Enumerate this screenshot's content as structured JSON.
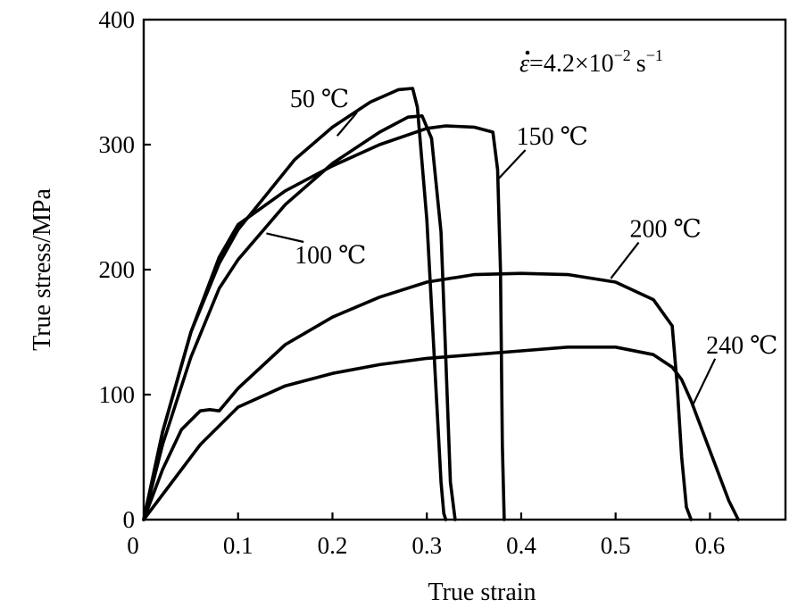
{
  "chart_data": {
    "type": "line",
    "title": "",
    "xlabel": "True strain",
    "ylabel": "True stress/MPa",
    "xlim": [
      0,
      0.68
    ],
    "ylim": [
      0,
      400
    ],
    "x_ticks": [
      0.1,
      0.2,
      0.3,
      0.4,
      0.5,
      0.6
    ],
    "x_tick_labels": [
      "0.1",
      "0.2",
      "0.3",
      "0.4",
      "0.5",
      "0.6"
    ],
    "y_ticks": [
      0,
      100,
      200,
      300,
      400
    ],
    "y_tick_labels": [
      "0",
      "100",
      "200",
      "300",
      "400"
    ],
    "grid": false,
    "legend": "none",
    "annotation": {
      "base": "ε",
      "text": "=4.2×10",
      "exponent": "−2",
      "unit": "s",
      "unit_exponent": "−1"
    },
    "series": [
      {
        "name": "50 ℃",
        "x": [
          0.0,
          0.02,
          0.05,
          0.08,
          0.1,
          0.13,
          0.16,
          0.2,
          0.24,
          0.27,
          0.285,
          0.29,
          0.3,
          0.31,
          0.315,
          0.318,
          0.32
        ],
        "y": [
          0,
          70,
          150,
          205,
          232,
          260,
          288,
          314,
          334,
          344,
          345,
          330,
          240,
          100,
          30,
          5,
          0
        ]
      },
      {
        "name": "100 ℃",
        "x": [
          0.0,
          0.02,
          0.05,
          0.08,
          0.1,
          0.15,
          0.2,
          0.25,
          0.28,
          0.295,
          0.305,
          0.315,
          0.32,
          0.325,
          0.33
        ],
        "y": [
          0,
          60,
          130,
          185,
          208,
          252,
          285,
          310,
          322,
          323,
          305,
          230,
          130,
          30,
          0
        ]
      },
      {
        "name": "150 ℃",
        "x": [
          0.0,
          0.02,
          0.05,
          0.08,
          0.1,
          0.15,
          0.2,
          0.25,
          0.3,
          0.32,
          0.35,
          0.37,
          0.375,
          0.378,
          0.38,
          0.382
        ],
        "y": [
          0,
          70,
          150,
          210,
          236,
          263,
          283,
          300,
          313,
          315,
          314,
          310,
          280,
          200,
          60,
          0
        ]
      },
      {
        "name": "200 ℃",
        "x": [
          0.0,
          0.02,
          0.04,
          0.06,
          0.07,
          0.08,
          0.1,
          0.15,
          0.2,
          0.25,
          0.3,
          0.35,
          0.4,
          0.45,
          0.5,
          0.54,
          0.56,
          0.565,
          0.57,
          0.575,
          0.58
        ],
        "y": [
          0,
          40,
          72,
          87,
          88,
          87,
          105,
          140,
          162,
          178,
          190,
          196,
          197,
          196,
          190,
          176,
          155,
          110,
          50,
          10,
          0
        ]
      },
      {
        "name": "240 ℃",
        "x": [
          0.0,
          0.03,
          0.06,
          0.1,
          0.15,
          0.2,
          0.25,
          0.3,
          0.35,
          0.4,
          0.45,
          0.5,
          0.54,
          0.56,
          0.57,
          0.58,
          0.6,
          0.62,
          0.63
        ],
        "y": [
          0,
          30,
          60,
          90,
          107,
          117,
          124,
          129,
          132,
          135,
          138,
          138,
          132,
          122,
          112,
          95,
          55,
          15,
          0
        ]
      }
    ],
    "series_labels": [
      {
        "text": "50 ℃",
        "x": 0.155,
        "y": 330,
        "point_x": 0.205,
        "point_y": 307
      },
      {
        "text": "100 ℃",
        "x": 0.16,
        "y": 205,
        "point_x": 0.13,
        "point_y": 229
      },
      {
        "text": "150 ℃",
        "x": 0.395,
        "y": 300,
        "point_x": 0.375,
        "point_y": 272
      },
      {
        "text": "200 ℃",
        "x": 0.515,
        "y": 226,
        "point_x": 0.495,
        "point_y": 193
      },
      {
        "text": "240 ℃",
        "x": 0.596,
        "y": 133,
        "point_x": 0.582,
        "point_y": 92
      }
    ]
  }
}
